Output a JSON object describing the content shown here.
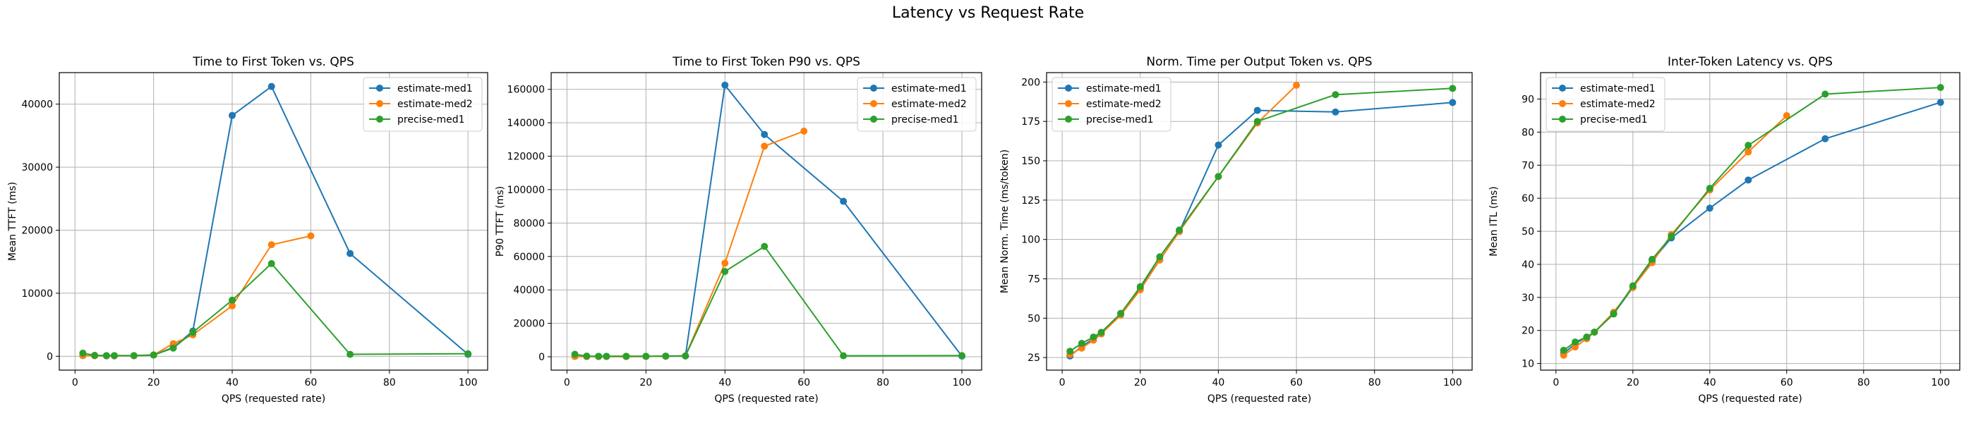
{
  "figure": {
    "title": "Latency vs Request Rate"
  },
  "colors": {
    "estimate-med1": "#1f77b4",
    "estimate-med2": "#ff7f0e",
    "precise-med1": "#2ca02c"
  },
  "chart_data": [
    {
      "type": "line",
      "title": "Time to First Token vs. QPS",
      "xlabel": "QPS (requested rate)",
      "ylabel": "Mean TTFT (ms)",
      "xlim": [
        -4,
        105
      ],
      "ylim": [
        -2200,
        45000
      ],
      "xticks": [
        0,
        20,
        40,
        60,
        80,
        100
      ],
      "yticks": [
        0,
        10000,
        20000,
        30000,
        40000
      ],
      "grid": true,
      "legend": "top-right",
      "series": [
        {
          "name": "estimate-med1",
          "x": [
            2,
            5,
            8,
            10,
            15,
            20,
            25,
            30,
            40,
            50,
            70,
            100
          ],
          "values": [
            100,
            80,
            70,
            70,
            80,
            200,
            1400,
            4000,
            38200,
            42800,
            16300,
            300
          ]
        },
        {
          "name": "estimate-med2",
          "x": [
            2,
            5,
            8,
            10,
            15,
            20,
            25,
            30,
            40,
            50,
            60
          ],
          "values": [
            100,
            80,
            70,
            70,
            80,
            200,
            2000,
            3400,
            8000,
            17700,
            19100
          ]
        },
        {
          "name": "precise-med1",
          "x": [
            2,
            5,
            8,
            10,
            15,
            20,
            25,
            30,
            40,
            50,
            70,
            100
          ],
          "values": [
            500,
            150,
            100,
            100,
            100,
            200,
            1300,
            3800,
            8900,
            14700,
            300,
            400
          ]
        }
      ]
    },
    {
      "type": "line",
      "title": "Time to First Token P90 vs. QPS",
      "xlabel": "QPS (requested rate)",
      "ylabel": "P90 TTFT (ms)",
      "xlim": [
        -4,
        105
      ],
      "ylim": [
        -8000,
        170000
      ],
      "xticks": [
        0,
        20,
        40,
        60,
        80,
        100
      ],
      "yticks": [
        0,
        20000,
        40000,
        60000,
        80000,
        100000,
        120000,
        140000,
        160000
      ],
      "grid": true,
      "legend": "top-right",
      "series": [
        {
          "name": "estimate-med1",
          "x": [
            2,
            5,
            8,
            10,
            15,
            20,
            25,
            30,
            40,
            50,
            70,
            100
          ],
          "values": [
            200,
            150,
            150,
            150,
            150,
            200,
            300,
            500,
            162500,
            133000,
            93000,
            400
          ]
        },
        {
          "name": "estimate-med2",
          "x": [
            2,
            5,
            8,
            10,
            15,
            20,
            25,
            30,
            40,
            50,
            60
          ],
          "values": [
            200,
            150,
            150,
            150,
            150,
            200,
            300,
            500,
            56000,
            126000,
            135000
          ]
        },
        {
          "name": "precise-med1",
          "x": [
            2,
            5,
            8,
            10,
            15,
            20,
            25,
            30,
            40,
            50,
            70,
            100
          ],
          "values": [
            1500,
            400,
            300,
            300,
            300,
            300,
            400,
            500,
            51000,
            66000,
            600,
            700
          ]
        }
      ]
    },
    {
      "type": "line",
      "title": "Norm. Time per Output Token vs. QPS",
      "xlabel": "QPS (requested rate)",
      "ylabel": "Mean Norm. Time (ms/token)",
      "xlim": [
        -4,
        105
      ],
      "ylim": [
        17,
        206
      ],
      "xticks": [
        0,
        20,
        40,
        60,
        80,
        100
      ],
      "yticks": [
        25,
        50,
        75,
        100,
        125,
        150,
        175,
        200
      ],
      "grid": true,
      "legend": "top-left",
      "series": [
        {
          "name": "estimate-med1",
          "x": [
            2,
            5,
            8,
            10,
            15,
            20,
            25,
            30,
            40,
            50,
            70,
            100
          ],
          "values": [
            26,
            32,
            37,
            40,
            53,
            69,
            87,
            105,
            160,
            182,
            181,
            187
          ]
        },
        {
          "name": "estimate-med2",
          "x": [
            2,
            5,
            8,
            10,
            15,
            20,
            25,
            30,
            40,
            50,
            60
          ],
          "values": [
            27,
            31,
            36,
            40,
            52,
            68,
            87,
            105,
            140,
            174,
            198
          ]
        },
        {
          "name": "precise-med1",
          "x": [
            2,
            5,
            8,
            10,
            15,
            20,
            25,
            30,
            40,
            50,
            70,
            100
          ],
          "values": [
            29,
            34,
            38,
            41,
            53,
            70,
            89,
            106,
            140,
            175,
            192,
            196
          ]
        }
      ]
    },
    {
      "type": "line",
      "title": "Inter-Token Latency vs. QPS",
      "xlabel": "QPS (requested rate)",
      "ylabel": "Mean ITL (ms)",
      "xlim": [
        -4,
        105
      ],
      "ylim": [
        8,
        98
      ],
      "xticks": [
        0,
        20,
        40,
        60,
        80,
        100
      ],
      "yticks": [
        10,
        20,
        30,
        40,
        50,
        60,
        70,
        80,
        90
      ],
      "grid": true,
      "legend": "top-left",
      "series": [
        {
          "name": "estimate-med1",
          "x": [
            2,
            5,
            8,
            10,
            15,
            20,
            25,
            30,
            40,
            50,
            70,
            100
          ],
          "values": [
            13,
            16,
            18,
            19.5,
            25,
            33,
            41,
            48,
            57,
            65.5,
            78,
            89
          ]
        },
        {
          "name": "estimate-med2",
          "x": [
            2,
            5,
            8,
            10,
            15,
            20,
            25,
            30,
            40,
            50,
            60
          ],
          "values": [
            12.5,
            15,
            17.5,
            19.5,
            25.5,
            33,
            40.5,
            49,
            62.5,
            74,
            85
          ]
        },
        {
          "name": "precise-med1",
          "x": [
            2,
            5,
            8,
            10,
            15,
            20,
            25,
            30,
            40,
            50,
            70,
            100
          ],
          "values": [
            14,
            16.5,
            18,
            19.5,
            25,
            33.5,
            41.5,
            48.5,
            63,
            76,
            91.5,
            93.5
          ]
        }
      ]
    }
  ]
}
